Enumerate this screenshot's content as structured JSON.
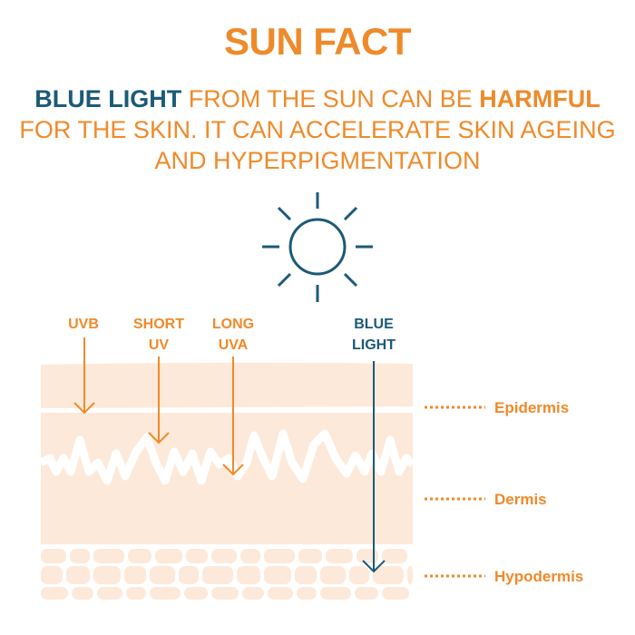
{
  "title": "SUN FACT",
  "subtitle": {
    "highlight_blue": "BLUE LIGHT",
    "part1": " FROM THE SUN CAN BE ",
    "highlight_orange": "HARMFUL",
    "line2": "FOR THE SKIN.  IT CAN ACCELERATE SKIN AGEING",
    "line3": "AND HYPERPIGMENTATION"
  },
  "icons": {
    "sun": "sun-icon"
  },
  "rays": [
    {
      "label_line1": "UVB",
      "label_line2": "",
      "color": "#ef8a2a"
    },
    {
      "label_line1": "SHORT",
      "label_line2": "UV",
      "color": "#ef8a2a"
    },
    {
      "label_line1": "LONG",
      "label_line2": "UVA",
      "color": "#ef8a2a"
    },
    {
      "label_line1": "BLUE",
      "label_line2": "LIGHT",
      "color": "#1b5a78"
    }
  ],
  "layers": [
    "Epidermis",
    "Dermis",
    "Hypodermis"
  ],
  "colors": {
    "orange": "#ef8a2a",
    "blue": "#1b5a78",
    "skin": "#fde9da"
  }
}
